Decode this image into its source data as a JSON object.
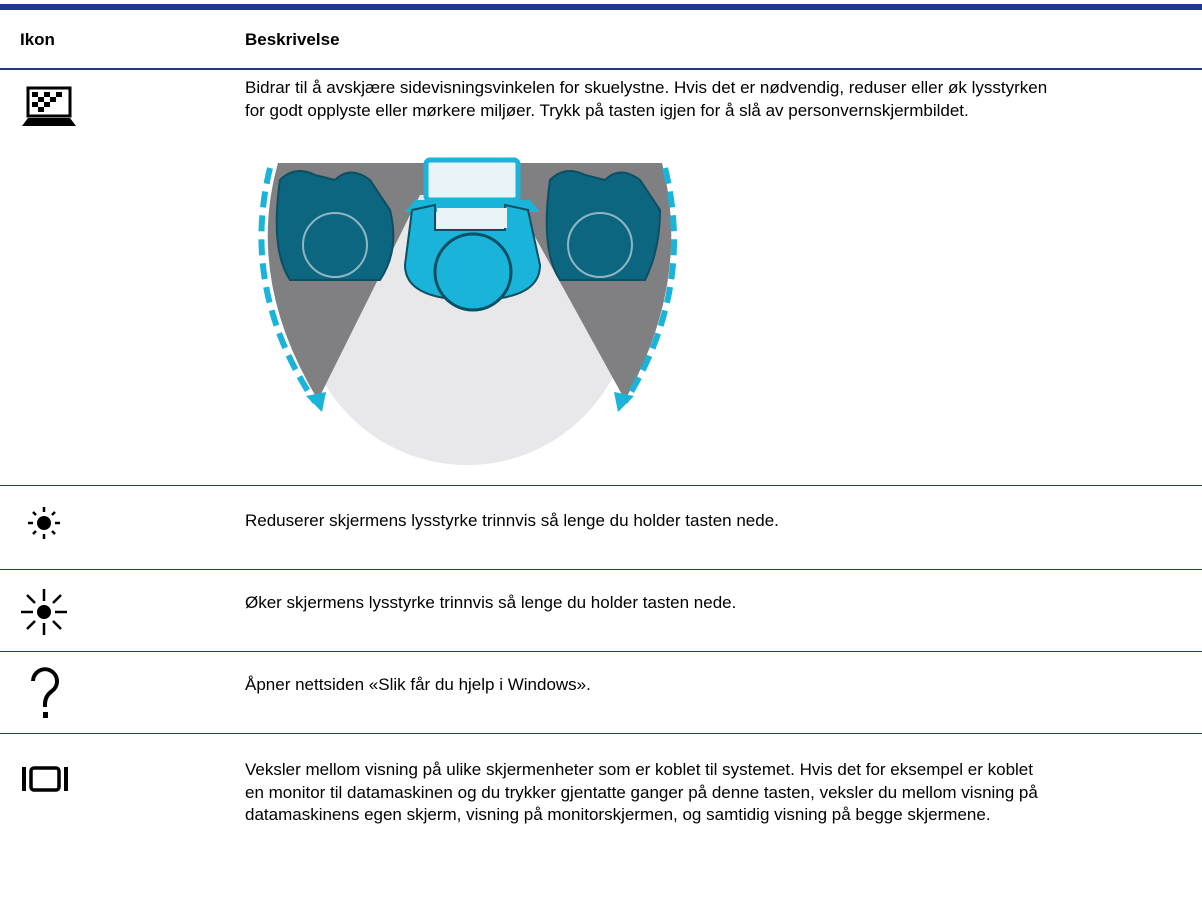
{
  "table": {
    "columns": [
      "Ikon",
      "Beskrivelse"
    ],
    "rows": [
      {
        "description": [
          "Bidrar til å avskjære sidevisningsvinkelen for skuelystne. Hvis det er nødvendig, reduser eller øk lysstyrken",
          "for godt opplyste eller mørkere miljøer. Trykk på tasten igjen for å slå av personvernskjermbildet."
        ]
      },
      {
        "description": [
          "Reduserer skjermens lysstyrke trinnvis så lenge du holder tasten nede."
        ]
      },
      {
        "description": [
          "Øker skjermens lysstyrke trinnvis så lenge du holder tasten nede."
        ]
      },
      {
        "description": [
          "Åpner nettsiden «Slik får du hjelp i Windows»."
        ]
      },
      {
        "description": [
          "Veksler mellom visning på ulike skjermenheter som er koblet til systemet. Hvis det for eksempel er koblet",
          "en monitor til datamaskinen og du trykker gjentatte ganger på denne tasten, veksler du mellom visning på",
          "datamaskinens egen skjerm, visning på monitorskjermen, og samtidig visning på begge skjermene."
        ]
      }
    ]
  }
}
